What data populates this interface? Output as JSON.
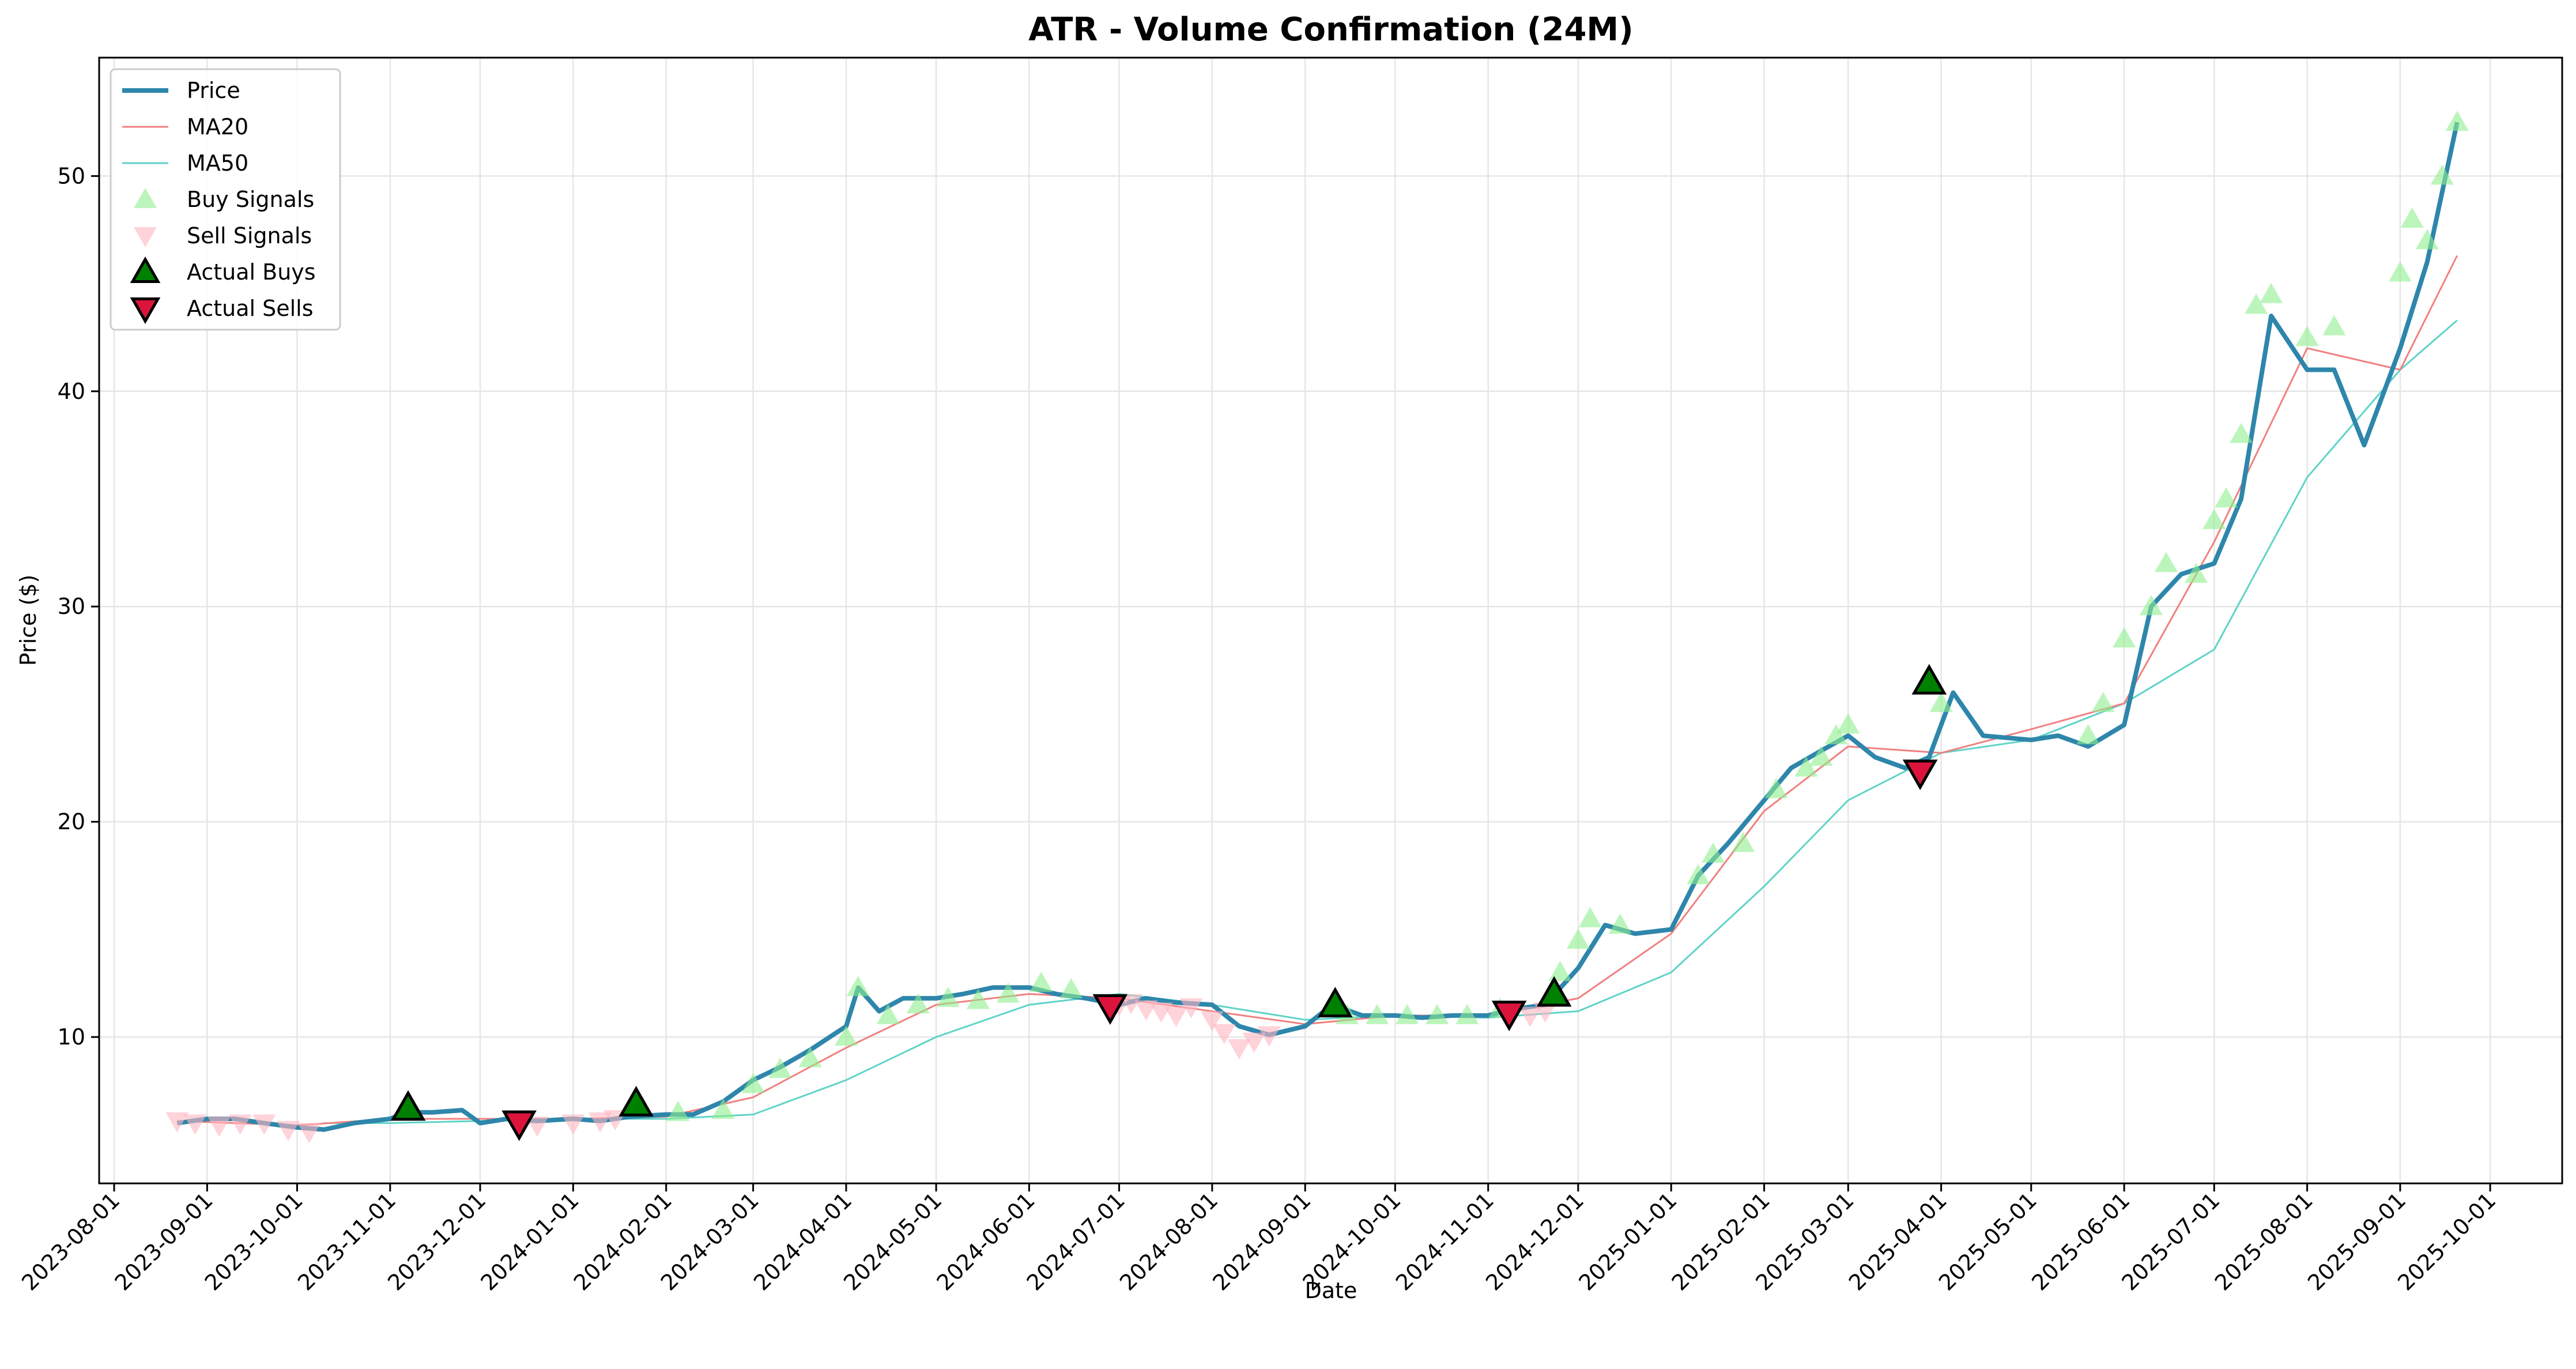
{
  "chart_data": {
    "type": "line",
    "title": "ATR - Volume Confirmation (24M)",
    "xlabel": "Date",
    "ylabel": "Price ($)",
    "grid": true,
    "legend_placement": "top-left",
    "colors": {
      "price": "#2e86ab",
      "ma20": "#f08080",
      "ma50": "#5fd3c8",
      "buy_signal": "#90ee90",
      "sell_signal": "#ffb6c1",
      "actual_buy": "#008000",
      "actual_sell": "#dc143c"
    },
    "xlim": [
      "2023-07-27",
      "2025-10-25"
    ],
    "ylim": [
      3.2,
      55.5
    ],
    "x_ticks": [
      "2023-08-01",
      "2023-09-01",
      "2023-10-01",
      "2023-11-01",
      "2023-12-01",
      "2024-01-01",
      "2024-02-01",
      "2024-03-01",
      "2024-04-01",
      "2024-05-01",
      "2024-06-01",
      "2024-07-01",
      "2024-08-01",
      "2024-09-01",
      "2024-10-01",
      "2024-11-01",
      "2024-12-01",
      "2025-01-01",
      "2025-02-01",
      "2025-03-01",
      "2025-04-01",
      "2025-05-01",
      "2025-06-01",
      "2025-07-01",
      "2025-08-01",
      "2025-09-01",
      "2025-10-01"
    ],
    "y_ticks": [
      10,
      20,
      30,
      40,
      50
    ],
    "legend": [
      "Price",
      "MA20",
      "MA50",
      "Buy Signals",
      "Sell Signals",
      "Actual Buys",
      "Actual Sells"
    ],
    "series": [
      {
        "name": "Price",
        "x": [
          "2023-08-22",
          "2023-09-01",
          "2023-09-10",
          "2023-09-20",
          "2023-10-01",
          "2023-10-10",
          "2023-10-20",
          "2023-11-01",
          "2023-11-06",
          "2023-11-15",
          "2023-11-25",
          "2023-12-01",
          "2023-12-10",
          "2023-12-20",
          "2024-01-01",
          "2024-01-10",
          "2024-01-20",
          "2024-02-01",
          "2024-02-10",
          "2024-02-20",
          "2024-03-01",
          "2024-03-10",
          "2024-03-20",
          "2024-04-01",
          "2024-04-05",
          "2024-04-12",
          "2024-04-20",
          "2024-05-01",
          "2024-05-10",
          "2024-05-20",
          "2024-06-01",
          "2024-06-10",
          "2024-06-20",
          "2024-07-01",
          "2024-07-10",
          "2024-07-20",
          "2024-08-01",
          "2024-08-10",
          "2024-08-20",
          "2024-09-01",
          "2024-09-10",
          "2024-09-20",
          "2024-10-01",
          "2024-10-10",
          "2024-10-20",
          "2024-11-01",
          "2024-11-10",
          "2024-11-20",
          "2024-12-01",
          "2024-12-10",
          "2024-12-20",
          "2025-01-01",
          "2025-01-10",
          "2025-01-20",
          "2025-02-01",
          "2025-02-10",
          "2025-02-20",
          "2025-03-01",
          "2025-03-10",
          "2025-03-20",
          "2025-03-28",
          "2025-04-05",
          "2025-04-15",
          "2025-05-01",
          "2025-05-10",
          "2025-05-20",
          "2025-06-01",
          "2025-06-10",
          "2025-06-20",
          "2025-07-01",
          "2025-07-10",
          "2025-07-20",
          "2025-08-01",
          "2025-08-10",
          "2025-08-20",
          "2025-09-01",
          "2025-09-10",
          "2025-09-20"
        ],
        "values": [
          6.0,
          6.2,
          6.2,
          6.0,
          5.8,
          5.7,
          6.0,
          6.2,
          6.5,
          6.5,
          6.6,
          6.0,
          6.2,
          6.1,
          6.2,
          6.1,
          6.3,
          6.4,
          6.4,
          7.0,
          8.0,
          8.6,
          9.4,
          10.5,
          12.3,
          11.2,
          11.8,
          11.8,
          12.0,
          12.3,
          12.3,
          12.0,
          11.8,
          11.5,
          11.8,
          11.6,
          11.5,
          10.5,
          10.1,
          10.5,
          11.5,
          11.0,
          11.0,
          10.9,
          11.0,
          11.0,
          11.3,
          11.5,
          13.2,
          15.2,
          14.8,
          15.0,
          17.5,
          19.0,
          21.0,
          22.5,
          23.3,
          24.0,
          23.0,
          22.5,
          23.0,
          26.0,
          24.0,
          23.8,
          24.0,
          23.5,
          24.5,
          30.0,
          31.5,
          32.0,
          35.0,
          43.5,
          41.0,
          41.0,
          37.5,
          42.0,
          46.0,
          52.5
        ]
      },
      {
        "name": "MA20",
        "x": [
          "2023-08-22",
          "2023-10-01",
          "2023-11-01",
          "2023-12-01",
          "2024-01-01",
          "2024-02-01",
          "2024-03-01",
          "2024-04-01",
          "2024-05-01",
          "2024-06-01",
          "2024-07-01",
          "2024-08-01",
          "2024-09-01",
          "2024-10-01",
          "2024-11-01",
          "2024-12-01",
          "2025-01-01",
          "2025-02-01",
          "2025-03-01",
          "2025-04-01",
          "2025-05-01",
          "2025-06-01",
          "2025-07-01",
          "2025-08-01",
          "2025-09-01",
          "2025-09-20"
        ],
        "values": [
          6.1,
          5.9,
          6.2,
          6.2,
          6.2,
          6.3,
          7.2,
          9.5,
          11.5,
          12.0,
          11.8,
          11.2,
          10.6,
          11.0,
          11.0,
          11.8,
          14.8,
          20.5,
          23.5,
          23.2,
          24.3,
          25.5,
          33.0,
          42.0,
          41.0,
          46.3
        ]
      },
      {
        "name": "MA50",
        "x": [
          "2023-10-10",
          "2023-11-01",
          "2023-12-01",
          "2024-01-01",
          "2024-02-01",
          "2024-03-01",
          "2024-04-01",
          "2024-05-01",
          "2024-06-01",
          "2024-07-01",
          "2024-08-01",
          "2024-09-01",
          "2024-10-01",
          "2024-11-01",
          "2024-12-01",
          "2025-01-01",
          "2025-02-01",
          "2025-03-01",
          "2025-04-01",
          "2025-05-01",
          "2025-06-01",
          "2025-07-01",
          "2025-08-01",
          "2025-09-01",
          "2025-09-20"
        ],
        "values": [
          6.0,
          6.0,
          6.1,
          6.2,
          6.2,
          6.4,
          8.0,
          10.0,
          11.5,
          12.0,
          11.5,
          10.8,
          11.0,
          10.9,
          11.2,
          13.0,
          17.0,
          21.0,
          23.2,
          23.8,
          25.5,
          28.0,
          36.0,
          41.0,
          43.3
        ]
      },
      {
        "name": "Buy Signals",
        "x": [
          "2024-02-05",
          "2024-02-20",
          "2024-03-01",
          "2024-03-10",
          "2024-03-20",
          "2024-04-01",
          "2024-04-05",
          "2024-04-15",
          "2024-04-25",
          "2024-05-05",
          "2024-05-15",
          "2024-05-25",
          "2024-06-05",
          "2024-06-15",
          "2024-09-15",
          "2024-09-25",
          "2024-10-05",
          "2024-10-15",
          "2024-10-25",
          "2024-11-05",
          "2024-11-25",
          "2024-12-01",
          "2024-12-05",
          "2024-12-15",
          "2025-01-10",
          "2025-01-15",
          "2025-01-25",
          "2025-02-05",
          "2025-02-15",
          "2025-02-20",
          "2025-02-25",
          "2025-03-01",
          "2025-04-01",
          "2025-05-20",
          "2025-05-25",
          "2025-06-01",
          "2025-06-10",
          "2025-06-15",
          "2025-06-25",
          "2025-07-01",
          "2025-07-05",
          "2025-07-10",
          "2025-07-15",
          "2025-07-20",
          "2025-08-01",
          "2025-08-10",
          "2025-09-01",
          "2025-09-05",
          "2025-09-10",
          "2025-09-15",
          "2025-09-20"
        ],
        "values": [
          6.5,
          6.6,
          7.8,
          8.5,
          9.0,
          10.0,
          12.3,
          11.0,
          11.5,
          11.8,
          11.7,
          12.0,
          12.5,
          12.2,
          11.0,
          11.0,
          11.0,
          11.0,
          11.0,
          11.3,
          13.0,
          14.5,
          15.5,
          15.2,
          17.5,
          18.5,
          19.0,
          21.5,
          22.5,
          23.0,
          24.0,
          24.5,
          25.5,
          24.0,
          25.5,
          28.5,
          30.0,
          32.0,
          31.5,
          34.0,
          35.0,
          38.0,
          44.0,
          44.5,
          42.5,
          43.0,
          45.5,
          48.0,
          47.0,
          50.0,
          52.5
        ]
      },
      {
        "name": "Sell Signals",
        "x": [
          "2023-08-22",
          "2023-08-28",
          "2023-09-05",
          "2023-09-12",
          "2023-09-20",
          "2023-09-28",
          "2023-10-05",
          "2023-12-20",
          "2024-01-01",
          "2024-01-10",
          "2024-01-15",
          "2024-07-01",
          "2024-07-05",
          "2024-07-10",
          "2024-07-15",
          "2024-07-20",
          "2024-07-25",
          "2024-08-01",
          "2024-08-05",
          "2024-08-10",
          "2024-08-15",
          "2024-08-20",
          "2024-11-15",
          "2024-11-20"
        ],
        "values": [
          6.1,
          6.0,
          5.9,
          6.0,
          6.0,
          5.7,
          5.6,
          5.9,
          6.0,
          6.1,
          6.2,
          11.5,
          11.6,
          11.3,
          11.2,
          11.0,
          11.4,
          10.8,
          10.2,
          9.5,
          9.8,
          10.1,
          11.0,
          11.2
        ]
      },
      {
        "name": "Actual Buys",
        "x": [
          "2023-11-07",
          "2024-01-22",
          "2024-09-11",
          "2024-11-23",
          "2025-03-28"
        ],
        "values": [
          6.7,
          6.9,
          11.5,
          12.0,
          26.5
        ]
      },
      {
        "name": "Actual Sells",
        "x": [
          "2023-12-14",
          "2024-06-28",
          "2024-11-08",
          "2025-03-25"
        ],
        "values": [
          6.0,
          11.4,
          11.1,
          22.3
        ]
      }
    ]
  }
}
